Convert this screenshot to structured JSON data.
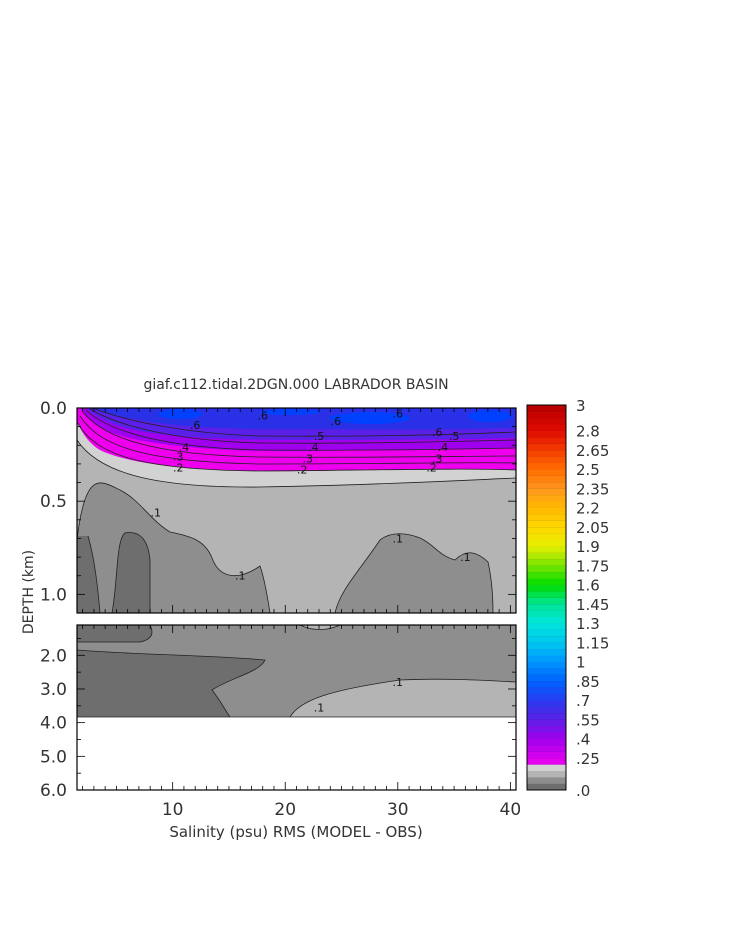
{
  "chart_data": {
    "type": "heatmap",
    "title": "giaf.c112.tidal.2DGN.000 LABRADOR BASIN",
    "xlabel": "Salinity (psu) RMS (MODEL - OBS)",
    "ylabel": "DEPTH (km)",
    "xlim": [
      1.5,
      40.5
    ],
    "ylim_upper_panel": [
      0.0,
      1.1
    ],
    "ylim_lower_panel": [
      1.1,
      6.0
    ],
    "x_ticks": [
      10,
      20,
      30,
      40
    ],
    "x_tick_labels": [
      "10",
      "20",
      "30",
      "40"
    ],
    "y_ticks_upper": [
      0.0,
      0.5,
      1.0
    ],
    "y_tick_labels_upper": [
      "0.0",
      "0.5",
      "1.0"
    ],
    "y_ticks_lower": [
      2.0,
      3.0,
      4.0,
      5.0,
      6.0
    ],
    "y_tick_labels_lower": [
      "2.0",
      "3.0",
      "4.0",
      "5.0",
      "6.0"
    ],
    "colorbar": {
      "min": 0.0,
      "max": 3.0,
      "step": 0.05,
      "labels": [
        "3",
        "2.8",
        "2.65",
        "2.5",
        "2.35",
        "2.2",
        "2.05",
        "1.9",
        "1.75",
        "1.6",
        "1.45",
        "1.3",
        "1.15",
        "1",
        ".85",
        ".7",
        ".55",
        ".4",
        ".25",
        ".0"
      ],
      "label_values": [
        3.0,
        2.8,
        2.65,
        2.5,
        2.35,
        2.2,
        2.05,
        1.9,
        1.75,
        1.6,
        1.45,
        1.3,
        1.15,
        1.0,
        0.85,
        0.7,
        0.55,
        0.4,
        0.25,
        0.0
      ]
    },
    "contour_labels": [
      {
        "text": ".6",
        "x": 18,
        "depth": 0.04
      },
      {
        "text": ".6",
        "x": 30,
        "depth": 0.03
      },
      {
        "text": ".6",
        "x": 12,
        "depth": 0.09
      },
      {
        "text": ".6",
        "x": 33.5,
        "depth": 0.13
      },
      {
        "text": ".6",
        "x": 24.5,
        "depth": 0.07
      },
      {
        "text": ".5",
        "x": 23,
        "depth": 0.15
      },
      {
        "text": ".5",
        "x": 35,
        "depth": 0.15
      },
      {
        "text": ".4",
        "x": 11,
        "depth": 0.21
      },
      {
        "text": ".4",
        "x": 22.5,
        "depth": 0.21
      },
      {
        "text": ".4",
        "x": 34,
        "depth": 0.21
      },
      {
        "text": ".3",
        "x": 10.5,
        "depth": 0.26
      },
      {
        "text": ".3",
        "x": 22,
        "depth": 0.27
      },
      {
        "text": ".3",
        "x": 33.5,
        "depth": 0.27
      },
      {
        "text": ".2",
        "x": 10.5,
        "depth": 0.32
      },
      {
        "text": ".2",
        "x": 21.5,
        "depth": 0.33
      },
      {
        "text": ".2",
        "x": 33,
        "depth": 0.32
      },
      {
        "text": ".1",
        "x": 8.5,
        "depth": 0.56
      },
      {
        "text": ".1",
        "x": 16,
        "depth": 0.9
      },
      {
        "text": ".1",
        "x": 30,
        "depth": 0.7
      },
      {
        "text": ".1",
        "x": 36,
        "depth": 0.8
      },
      {
        "text": ".1",
        "x": 30,
        "depth": 2.8
      },
      {
        "text": ".1",
        "x": 23,
        "depth": 3.55
      }
    ],
    "grid": false
  }
}
